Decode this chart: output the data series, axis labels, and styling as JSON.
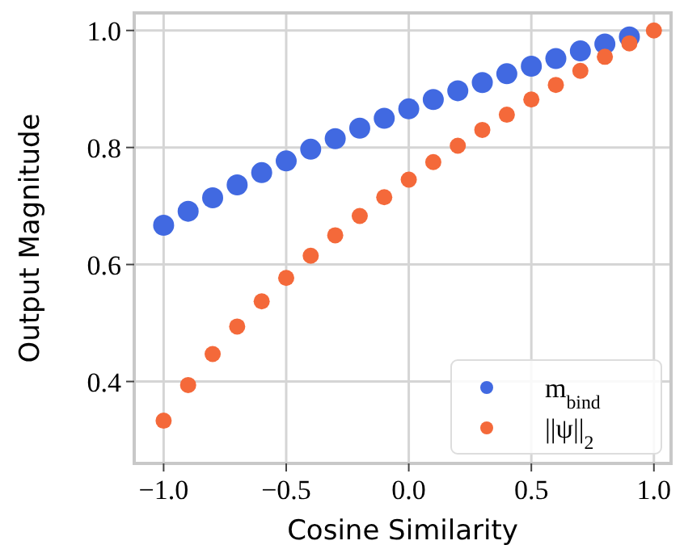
{
  "chart_data": {
    "type": "scatter",
    "xlabel": "Cosine Similarity",
    "ylabel": "Output Magnitude",
    "x": [
      -1,
      -0.9,
      -0.8,
      -0.7,
      -0.6,
      -0.5,
      -0.4,
      -0.3,
      -0.2,
      -0.1,
      0,
      0.1,
      0.2,
      0.3,
      0.4,
      0.5,
      0.6,
      0.7,
      0.8,
      0.9,
      1
    ],
    "series": [
      {
        "name": "m$_{bind}$",
        "color": "#4169e1",
        "values": [
          0.667,
          0.691,
          0.714,
          0.736,
          0.757,
          0.777,
          0.797,
          0.815,
          0.833,
          0.85,
          0.866,
          0.882,
          0.897,
          0.911,
          0.926,
          0.939,
          0.952,
          0.965,
          0.977,
          0.989,
          null
        ]
      },
      {
        "name": "||ψ||$_{2}$",
        "color": "#f4693a",
        "values": [
          0.333,
          0.394,
          0.447,
          0.494,
          0.537,
          0.577,
          0.615,
          0.65,
          0.683,
          0.715,
          0.745,
          0.775,
          0.803,
          0.83,
          0.856,
          0.882,
          0.907,
          0.931,
          0.955,
          0.978,
          1
        ]
      }
    ],
    "xlim": [
      -1.12,
      1.07
    ],
    "ylim": [
      0.26,
      1.03
    ],
    "xticks": [
      {
        "value": -1,
        "label": "−1.0"
      },
      {
        "value": -0.5,
        "label": "−0.5"
      },
      {
        "value": 0,
        "label": "0.0"
      },
      {
        "value": 0.5,
        "label": "0.5"
      },
      {
        "value": 1,
        "label": "1.0"
      }
    ],
    "yticks": [
      {
        "value": 0.4,
        "label": "0.4"
      },
      {
        "value": 0.6,
        "label": "0.6"
      },
      {
        "value": 0.8,
        "label": "0.8"
      },
      {
        "value": 1,
        "label": "1.0"
      }
    ],
    "grid": true,
    "legend": "bottom right",
    "marker": "circle"
  }
}
